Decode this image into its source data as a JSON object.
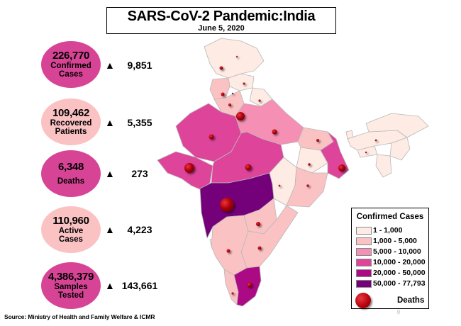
{
  "title": {
    "main": "SARS-CoV-2 Pandemic:India",
    "date": "June 5, 2020"
  },
  "stats": [
    {
      "value": "226,770",
      "label_lines": [
        "Confirmed",
        "Cases"
      ],
      "delta": "9,851",
      "color": "#d84495"
    },
    {
      "value": "109,462",
      "label_lines": [
        "Recovered",
        "Patients"
      ],
      "delta": "5,355",
      "color": "#fbc2c3"
    },
    {
      "value": "6,348",
      "label_lines": [
        "Deaths"
      ],
      "delta": "273",
      "color": "#d84495"
    },
    {
      "value": "110,960",
      "label_lines": [
        "Active",
        "Cases"
      ],
      "delta": "4,223",
      "color": "#fbc2c3"
    },
    {
      "value": "4,386,379",
      "label_lines": [
        "Samples",
        "Tested"
      ],
      "delta": "143,661",
      "color": "#d84495"
    }
  ],
  "delta_symbol": "▲",
  "legend": {
    "title": "Confirmed Cases",
    "items": [
      {
        "label": "1 - 1,000",
        "color": "#fdebe4"
      },
      {
        "label": "1,000 - 5,000",
        "color": "#fbc2c3"
      },
      {
        "label": "5,000 - 10,000",
        "color": "#f58fb3"
      },
      {
        "label": "10,000 - 20,000",
        "color": "#dd449a"
      },
      {
        "label": "20,000 - 50,000",
        "color": "#ac0a85"
      },
      {
        "label": "50,000 - 77,793",
        "color": "#74007a"
      }
    ],
    "deaths_label": "Deaths"
  },
  "source": "Source: Ministry of Health and Family Welfare & ICMR"
}
